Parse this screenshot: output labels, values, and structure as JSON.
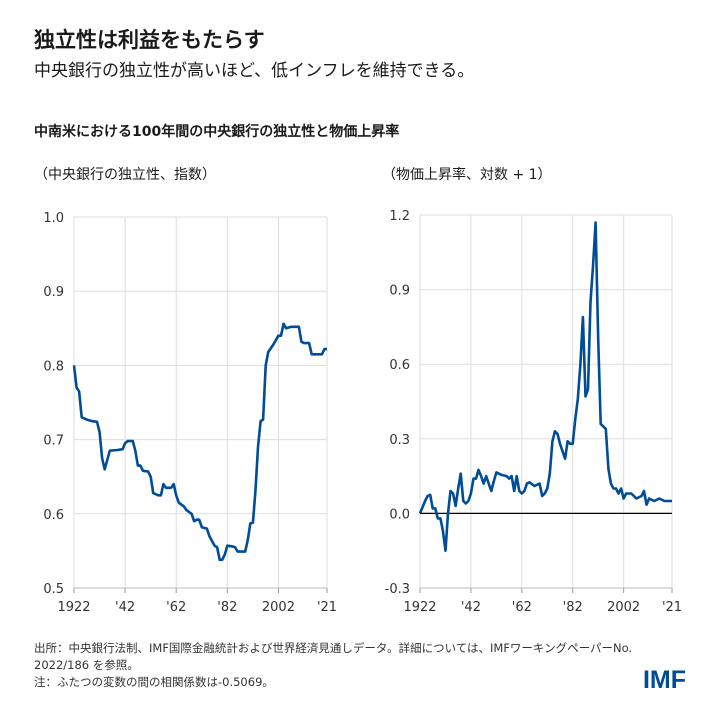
{
  "header": {
    "title": "独立性は利益をもたらす",
    "subtitle": "中央銀行の独立性が高いほど、低インフレを維持できる。",
    "chart_title": "中南米における100年間の中央銀行の独立性と物価上昇率"
  },
  "footer": {
    "source": "出所：中央銀行法制、IMF国際金融統計および世界経済見通しデータ。詳細については、IMFワーキングペーパーNo. 2022/186 を参照。",
    "note": "注：ふたつの変数の間の相関係数は-0.5069。",
    "logo": "IMF"
  },
  "colors": {
    "line": "#004c97",
    "grid": "#dddddd",
    "zero": "#000000"
  },
  "chart_data": [
    {
      "type": "line",
      "ylabel": "（中央銀行の独立性、指数）",
      "ylim": [
        0.5,
        1.0
      ],
      "yticks": [
        1.0,
        0.9,
        0.8,
        0.7,
        0.6,
        0.5
      ],
      "ytick_labels": [
        "1.0",
        "0.9",
        "0.8",
        "0.7",
        "0.6",
        "0.5"
      ],
      "xlim": [
        1922,
        2021
      ],
      "xticks": [
        1922,
        1942,
        1962,
        1982,
        2002,
        2021
      ],
      "xtick_labels": [
        "1922",
        "'42",
        "'62",
        "'82",
        "2002",
        "'21"
      ],
      "grid": true,
      "x": [
        1922,
        1923,
        1924,
        1925,
        1927,
        1929,
        1931,
        1932,
        1933,
        1934,
        1936,
        1939,
        1941,
        1942,
        1943,
        1945,
        1946,
        1947,
        1948,
        1949,
        1951,
        1952,
        1953,
        1955,
        1956,
        1957,
        1958,
        1960,
        1961,
        1962,
        1963,
        1965,
        1966,
        1968,
        1969,
        1970,
        1971,
        1972,
        1974,
        1975,
        1977,
        1978,
        1979,
        1980,
        1981,
        1982,
        1984,
        1985,
        1986,
        1989,
        1990,
        1991,
        1992,
        1993,
        1994,
        1995,
        1996,
        1997,
        1998,
        2000,
        2002,
        2003,
        2004,
        2005,
        2007,
        2010,
        2011,
        2012,
        2014,
        2015,
        2019,
        2020,
        2021
      ],
      "y": [
        0.8,
        0.77,
        0.765,
        0.73,
        0.727,
        0.725,
        0.724,
        0.71,
        0.675,
        0.66,
        0.685,
        0.686,
        0.687,
        0.695,
        0.698,
        0.698,
        0.685,
        0.665,
        0.665,
        0.658,
        0.657,
        0.65,
        0.628,
        0.625,
        0.625,
        0.64,
        0.635,
        0.635,
        0.64,
        0.625,
        0.615,
        0.61,
        0.605,
        0.6,
        0.59,
        0.592,
        0.592,
        0.582,
        0.58,
        0.57,
        0.557,
        0.555,
        0.538,
        0.538,
        0.545,
        0.557,
        0.556,
        0.555,
        0.549,
        0.549,
        0.565,
        0.587,
        0.588,
        0.63,
        0.69,
        0.725,
        0.727,
        0.8,
        0.818,
        0.828,
        0.84,
        0.84,
        0.856,
        0.85,
        0.852,
        0.852,
        0.832,
        0.83,
        0.83,
        0.815,
        0.815,
        0.822,
        0.822
      ]
    },
    {
      "type": "line",
      "ylabel": "（物価上昇率、対数 + 1）",
      "ylim": [
        -0.3,
        1.2
      ],
      "yticks": [
        1.2,
        0.9,
        0.6,
        0.3,
        0.0,
        -0.3
      ],
      "ytick_labels": [
        "1.2",
        "0.9",
        "0.6",
        "0.3",
        "0.0",
        "-0.3"
      ],
      "xlim": [
        1922,
        2021
      ],
      "xticks": [
        1922,
        1942,
        1962,
        1982,
        2002,
        2021
      ],
      "xtick_labels": [
        "1922",
        "'42",
        "'62",
        "'82",
        "2002",
        "'21"
      ],
      "grid": true,
      "zero_line": true,
      "x": [
        1922,
        1924,
        1925,
        1926,
        1927,
        1928,
        1929,
        1930,
        1931,
        1932,
        1933,
        1934,
        1935,
        1936,
        1937,
        1938,
        1939,
        1940,
        1941,
        1942,
        1943,
        1944,
        1945,
        1946,
        1947,
        1948,
        1949,
        1950,
        1951,
        1952,
        1954,
        1956,
        1957,
        1958,
        1959,
        1960,
        1961,
        1962,
        1963,
        1964,
        1965,
        1967,
        1969,
        1970,
        1971,
        1972,
        1973,
        1974,
        1975,
        1976,
        1977,
        1978,
        1979,
        1980,
        1981,
        1982,
        1983,
        1984,
        1985,
        1986,
        1987,
        1988,
        1989,
        1990,
        1991,
        1992,
        1993,
        1994,
        1995,
        1996,
        1997,
        1998,
        1999,
        2000,
        2001,
        2002,
        2003,
        2005,
        2007,
        2009,
        2010,
        2011,
        2012,
        2014,
        2016,
        2018,
        2021
      ],
      "y": [
        0.0,
        0.05,
        0.07,
        0.075,
        0.02,
        0.02,
        -0.02,
        -0.02,
        -0.07,
        -0.15,
        0.0,
        0.09,
        0.08,
        0.03,
        0.1,
        0.16,
        0.05,
        0.04,
        0.05,
        0.08,
        0.14,
        0.14,
        0.175,
        0.15,
        0.12,
        0.15,
        0.12,
        0.09,
        0.13,
        0.165,
        0.155,
        0.15,
        0.14,
        0.15,
        0.09,
        0.15,
        0.09,
        0.08,
        0.09,
        0.12,
        0.125,
        0.11,
        0.12,
        0.07,
        0.08,
        0.1,
        0.16,
        0.29,
        0.33,
        0.32,
        0.28,
        0.25,
        0.22,
        0.29,
        0.28,
        0.28,
        0.38,
        0.46,
        0.6,
        0.79,
        0.47,
        0.5,
        0.85,
        1.0,
        1.17,
        0.7,
        0.36,
        0.35,
        0.34,
        0.18,
        0.12,
        0.1,
        0.1,
        0.08,
        0.1,
        0.06,
        0.08,
        0.08,
        0.06,
        0.07,
        0.09,
        0.035,
        0.06,
        0.05,
        0.06,
        0.05,
        0.05
      ]
    }
  ]
}
